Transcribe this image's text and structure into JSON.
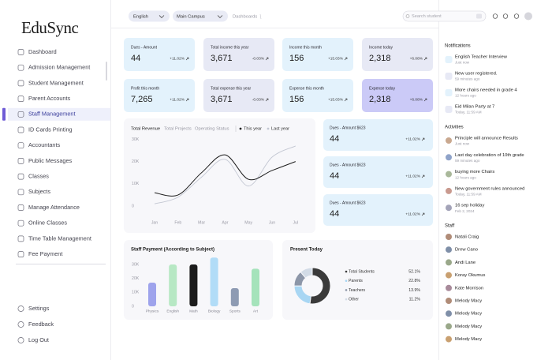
{
  "sidebar": {
    "logo": "EduSync",
    "menu": [
      "Dashboard",
      "Admission Management",
      "Student Management",
      "Parent Accounts",
      "Staff Management",
      "ID Cards Printing",
      "Accountants",
      "Public Messages",
      "Classes",
      "Subjects",
      "Manage Attendance",
      "Online Classes",
      "Time Table Management",
      "Fee Payment"
    ],
    "footer": [
      "Settings",
      "Feedback",
      "Log Out"
    ]
  },
  "topbar": {
    "language": "English",
    "campus": "Main Campus",
    "breadcrumb": "Dashboards",
    "search_placeholder": "Search student"
  },
  "stat_cards": [
    {
      "label": "Dues - Amount",
      "value": "44",
      "change": "+11.02%"
    },
    {
      "label": "Total income this year",
      "value": "3,671",
      "change": "-0.03%"
    },
    {
      "label": "Income this month",
      "value": "156",
      "change": "+15.03%"
    },
    {
      "label": "Income today",
      "value": "2,318",
      "change": "+6.08%"
    },
    {
      "label": "Profit this month",
      "value": "7,265",
      "change": "+11.02%"
    },
    {
      "label": "Total expense this year",
      "value": "3,671",
      "change": "-0.03%"
    },
    {
      "label": "Expense this month",
      "value": "156",
      "change": "+15.03%"
    },
    {
      "label": "Expense today",
      "value": "2,318",
      "change": "+6.08%"
    }
  ],
  "revenue_chart": {
    "type": "line",
    "tabs": [
      "Total Revenue",
      "Total Projects",
      "Operating Status"
    ],
    "categories": [
      "Jan",
      "Feb",
      "Mar",
      "Apr",
      "May",
      "Jun",
      "Jul"
    ],
    "series": [
      {
        "name": "This year",
        "color": "#1c1c1c",
        "values": [
          6000,
          5000,
          15000,
          23000,
          12000,
          16000,
          20000
        ]
      },
      {
        "name": "Last year",
        "color": "#c3c7d2",
        "values": [
          1000,
          4000,
          13000,
          21000,
          9000,
          22000,
          27000
        ]
      }
    ],
    "ylim": [
      0,
      33000
    ],
    "yticks": [
      0,
      {
        "value": 10000,
        "label": "10K"
      },
      {
        "value": 20000,
        "label": "20K"
      },
      {
        "value": 30000,
        "label": "30K"
      }
    ]
  },
  "dues_cards": [
    {
      "label": "Dues - Amount $623",
      "value": "44",
      "change": "+11.02%"
    },
    {
      "label": "Dues - Amount $623",
      "value": "44",
      "change": "+11.02%"
    },
    {
      "label": "Dues - Amount $623",
      "value": "44",
      "change": "+11.02%"
    }
  ],
  "payment_chart": {
    "type": "bar",
    "title": "Staff Payment (According to Subject)",
    "categories": [
      "Physics",
      "English",
      "Math",
      "Biology",
      "Sports",
      "Art"
    ],
    "values": [
      17000,
      30000,
      30000,
      35000,
      13000,
      27000
    ],
    "colors": [
      "#9ea3ec",
      "#b7e8c4",
      "#1c1c1c",
      "#b1dcf7",
      "#8e9bb3",
      "#a5e3bb"
    ],
    "ylim": [
      0,
      35000
    ],
    "yticks": [
      0,
      {
        "value": 10000,
        "label": "10K"
      },
      {
        "value": 20000,
        "label": "20K"
      },
      {
        "value": 30000,
        "label": "30K"
      }
    ]
  },
  "attendance_chart": {
    "type": "pie",
    "title": "Present Today",
    "categories": [
      "Total Students",
      "Parents",
      "Teachers",
      "Other"
    ],
    "values": [
      52.1,
      22.8,
      13.9,
      11.2
    ],
    "value_labels": [
      "52.1%",
      "22.8%",
      "13.9%",
      "11.2%"
    ],
    "colors": [
      "#3a3a3a",
      "#a8d6f3",
      "#8c96a8",
      "#d2dbe6"
    ]
  },
  "notifications": {
    "title": "Notifications",
    "items": [
      {
        "text": "English Teacher Interview",
        "time": "Just now"
      },
      {
        "text": "New user registered.",
        "time": "59 minutes ago"
      },
      {
        "text": "More chairs needed in grade 4",
        "time": "12 hours ago"
      },
      {
        "text": "Eid Milan Party at 7",
        "time": "Today, 11:59 AM"
      }
    ]
  },
  "activities": {
    "title": "Activities",
    "items": [
      {
        "text": "Principle will announce Results",
        "time": "Just now"
      },
      {
        "text": "Last day celebration of 10th grade",
        "time": "59 minutes ago"
      },
      {
        "text": "buying more Chairs",
        "time": "12 hours ago"
      },
      {
        "text": "New government rules announced",
        "time": "Today, 11:59 AM"
      },
      {
        "text": "16 sep holiday",
        "time": "Feb 2, 2024"
      }
    ]
  },
  "staff": {
    "title": "Staff",
    "names": [
      "Natali Craig",
      "Drew Cano",
      "Andi Lane",
      "Koray Okumus",
      "Kate Morrison",
      "Melody Macy",
      "Melody Macy",
      "Melody Macy",
      "Melody Macy"
    ]
  }
}
